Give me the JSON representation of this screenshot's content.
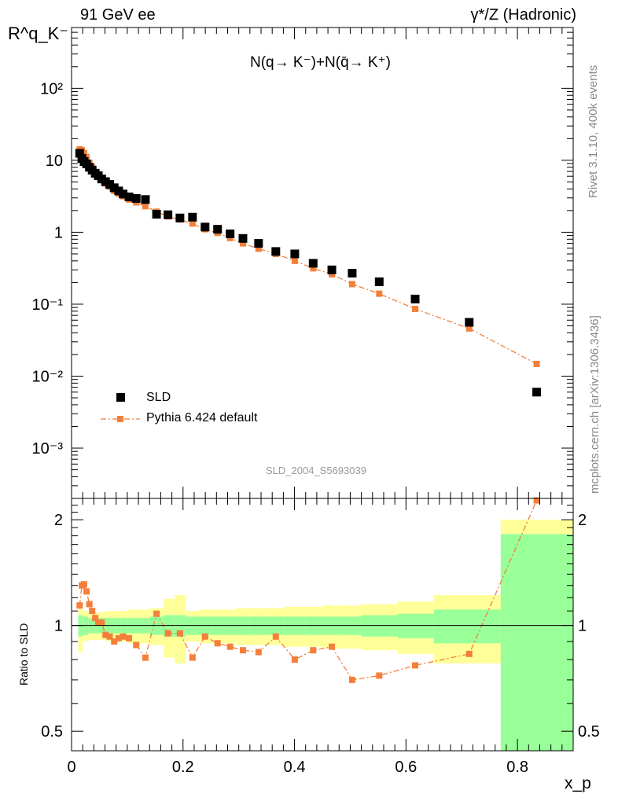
{
  "header": {
    "left": "91 GeV ee",
    "right": "γ*/Z (Hadronic)",
    "side_top": "Rivet 3.1.10,  400k events",
    "side_bottom": "mcplots.cern.ch [arXiv:1306.3436]"
  },
  "colors": {
    "data": "#000000",
    "mc": "#f47f3a",
    "band_inner": "#99ff99",
    "band_outer": "#ffff99"
  },
  "chart_data": [
    {
      "type": "scatter",
      "title": "N(q→ K⁻)+N(q̄→ K⁺)",
      "ylabel": "R^q_K⁻",
      "yscale": "log",
      "ylim": [
        0.0002,
        700
      ],
      "xlim": [
        0,
        0.9
      ],
      "ytick_labels": [
        "10⁻³",
        "10⁻²",
        "10⁻¹",
        "1",
        "10",
        "10²"
      ],
      "legend": {
        "placement": "lower-left"
      },
      "analysis_label": "SLD_2004_S5693039",
      "x": [
        0.0145,
        0.0185,
        0.0225,
        0.027,
        0.032,
        0.037,
        0.0425,
        0.048,
        0.054,
        0.061,
        0.0685,
        0.0765,
        0.0845,
        0.0925,
        0.103,
        0.116,
        0.1325,
        0.1525,
        0.173,
        0.1945,
        0.217,
        0.2395,
        0.262,
        0.2845,
        0.3075,
        0.3355,
        0.3665,
        0.4005,
        0.4335,
        0.467,
        0.5035,
        0.552,
        0.6165,
        0.7135,
        0.8345
      ],
      "series": [
        {
          "name": "SLD",
          "values": [
            12.5,
            10.6,
            9.6,
            8.9,
            8.0,
            7.3,
            6.6,
            6.1,
            5.5,
            5.05,
            4.62,
            4.15,
            3.75,
            3.4,
            3.1,
            2.95,
            2.85,
            1.78,
            1.75,
            1.58,
            1.62,
            1.18,
            1.1,
            0.95,
            0.82,
            0.7,
            0.54,
            0.5,
            0.37,
            0.3,
            0.27,
            0.205,
            0.118,
            0.056,
            0.006
          ]
        },
        {
          "name": "Pythia 6.424 default",
          "values": [
            14.2,
            13.8,
            12.6,
            11.1,
            9.2,
            8.0,
            6.9,
            6.2,
            5.6,
            4.75,
            4.3,
            3.75,
            3.45,
            3.16,
            2.85,
            2.6,
            2.3,
            1.93,
            1.66,
            1.5,
            1.32,
            1.1,
            0.98,
            0.83,
            0.7,
            0.59,
            0.5,
            0.4,
            0.315,
            0.26,
            0.19,
            0.14,
            0.086,
            0.046,
            0.0148
          ]
        }
      ]
    },
    {
      "type": "line",
      "ylabel": "Ratio to SLD",
      "xlabel": "x_p",
      "yscale": "log",
      "ylim": [
        0.44,
        2.3
      ],
      "xlim": [
        0,
        0.9
      ],
      "yticks": [
        0.5,
        1,
        2
      ],
      "ytick_labels": [
        "0.5",
        "1",
        "2"
      ],
      "xticks": [
        0,
        0.2,
        0.4,
        0.6,
        0.8
      ],
      "xtick_labels": [
        "0",
        "0.2",
        "0.4",
        "0.6",
        "0.8"
      ],
      "reference_line": 1,
      "ratio": [
        1.14,
        1.3,
        1.31,
        1.25,
        1.15,
        1.1,
        1.05,
        1.02,
        1.02,
        0.94,
        0.93,
        0.9,
        0.92,
        0.93,
        0.92,
        0.88,
        0.81,
        1.08,
        0.95,
        0.95,
        0.81,
        0.93,
        0.89,
        0.87,
        0.85,
        0.84,
        0.93,
        0.8,
        0.85,
        0.87,
        0.7,
        0.72,
        0.77,
        0.83,
        2.27
      ],
      "bands": {
        "x_edges": [
          0.012,
          0.02,
          0.03,
          0.04,
          0.05,
          0.06,
          0.07,
          0.08,
          0.09,
          0.1,
          0.12,
          0.14,
          0.165,
          0.185,
          0.205,
          0.23,
          0.25,
          0.275,
          0.295,
          0.32,
          0.35,
          0.38,
          0.42,
          0.45,
          0.485,
          0.52,
          0.585,
          0.65,
          0.77,
          0.9
        ],
        "inner": [
          0.07,
          0.06,
          0.05,
          0.05,
          0.05,
          0.05,
          0.05,
          0.05,
          0.05,
          0.05,
          0.05,
          0.06,
          0.07,
          0.07,
          0.06,
          0.06,
          0.06,
          0.06,
          0.06,
          0.06,
          0.06,
          0.06,
          0.06,
          0.06,
          0.06,
          0.07,
          0.08,
          0.11,
          0.82
        ],
        "outer": [
          0.16,
          0.1,
          0.09,
          0.09,
          0.09,
          0.1,
          0.1,
          0.1,
          0.1,
          0.11,
          0.11,
          0.12,
          0.19,
          0.22,
          0.1,
          0.11,
          0.11,
          0.11,
          0.12,
          0.12,
          0.12,
          0.13,
          0.13,
          0.14,
          0.14,
          0.15,
          0.17,
          0.22,
          1.0
        ]
      }
    }
  ]
}
